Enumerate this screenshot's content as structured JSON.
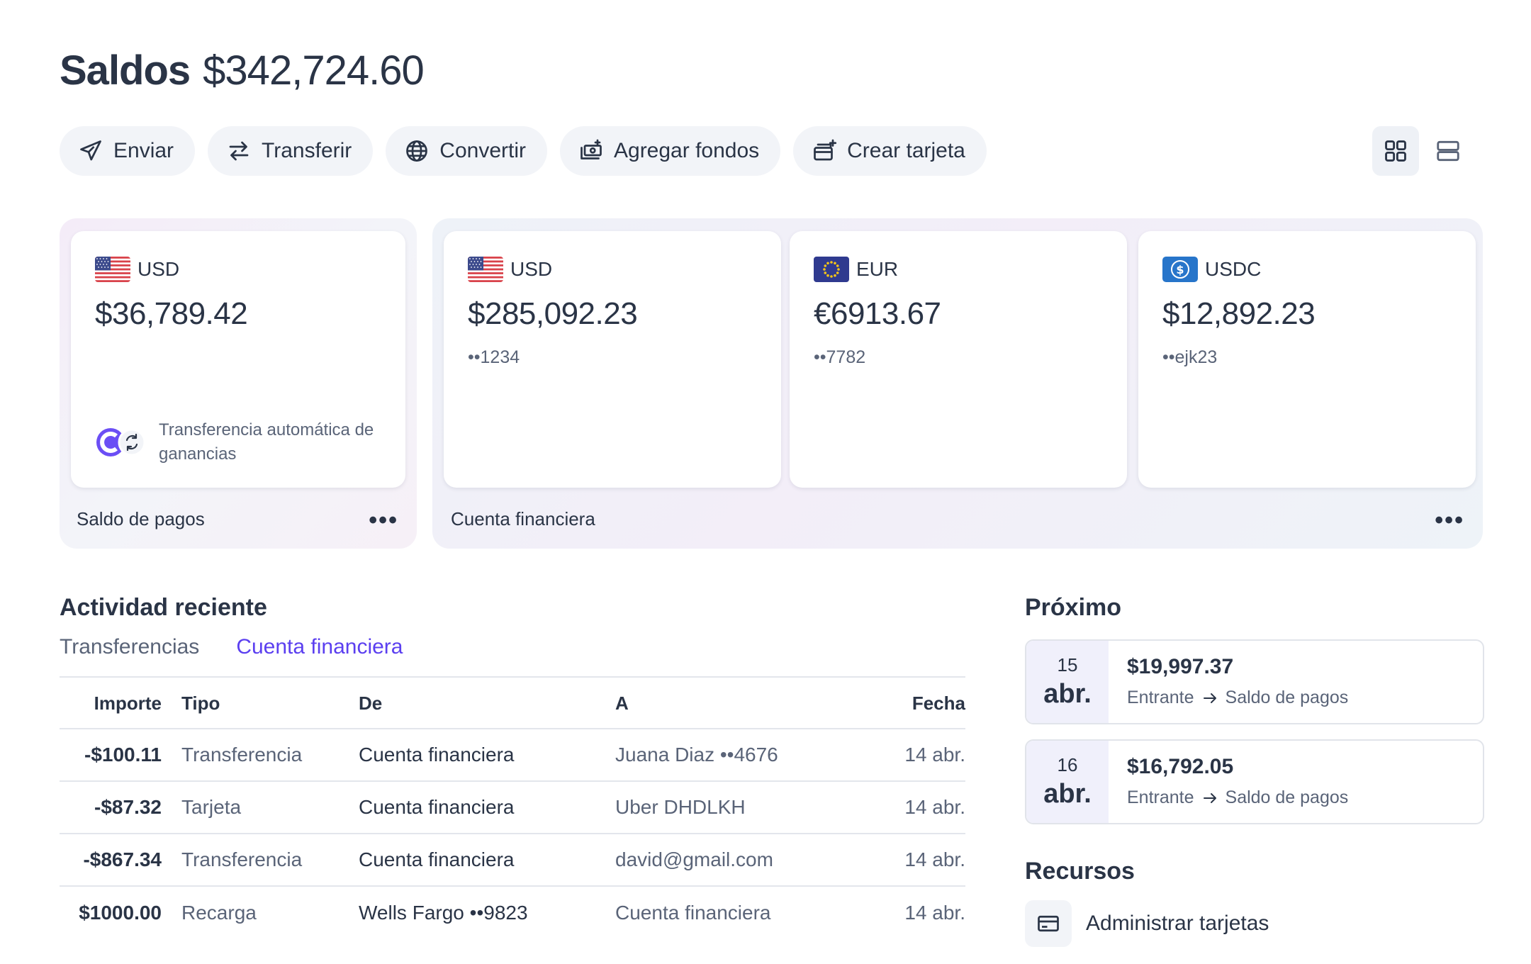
{
  "header": {
    "title": "Saldos",
    "total": "$342,724.60"
  },
  "toolbar": {
    "send": "Enviar",
    "transfer": "Transferir",
    "convert": "Convertir",
    "add_funds": "Agregar fondos",
    "create_card": "Crear tarjeta"
  },
  "payments_group": {
    "label": "Saldo de pagos",
    "card": {
      "currency": "USD",
      "amount": "$36,789.42",
      "auto_transfer": "Transferencia automática de ganancias"
    }
  },
  "financial_group": {
    "label": "Cuenta financiera",
    "cards": [
      {
        "currency": "USD",
        "amount": "$285,092.23",
        "account": "••1234"
      },
      {
        "currency": "EUR",
        "amount": "€6913.67",
        "account": "••7782"
      },
      {
        "currency": "USDC",
        "amount": "$12,892.23",
        "account": "••ejk23"
      }
    ]
  },
  "activity": {
    "title": "Actividad reciente",
    "tabs": [
      "Transferencias",
      "Cuenta financiera"
    ],
    "columns": {
      "amount": "Importe",
      "type": "Tipo",
      "from": "De",
      "to": "A",
      "date": "Fecha"
    },
    "rows": [
      {
        "amount": "-$100.11",
        "type": "Transferencia",
        "from": "Cuenta financiera",
        "to": "Juana Diaz ••4676",
        "date": "14 abr."
      },
      {
        "amount": "-$87.32",
        "type": "Tarjeta",
        "from": "Cuenta financiera",
        "to": "Uber DHDLKH",
        "date": "14 abr."
      },
      {
        "amount": "-$867.34",
        "type": "Transferencia",
        "from": "Cuenta financiera",
        "to": "david@gmail.com",
        "date": "14 abr."
      },
      {
        "amount": "$1000.00",
        "type": "Recarga",
        "from": "Wells Fargo ••9823",
        "to": "Cuenta financiera",
        "date": "14 abr."
      }
    ]
  },
  "upcoming": {
    "title": "Próximo",
    "items": [
      {
        "day": "15",
        "month": "abr.",
        "amount": "$19,997.37",
        "direction": "Entrante",
        "destination": "Saldo de pagos"
      },
      {
        "day": "16",
        "month": "abr.",
        "amount": "$16,792.05",
        "direction": "Entrante",
        "destination": "Saldo de pagos"
      }
    ]
  },
  "resources": {
    "title": "Recursos",
    "manage_cards": "Administrar tarjetas"
  },
  "colors": {
    "accent": "#5b3ff0",
    "text": "#2a3446",
    "muted": "#5a6478"
  },
  "icons": [
    "send-icon",
    "transfer-icon",
    "globe-icon",
    "add-funds-icon",
    "create-card-icon",
    "grid-view-icon",
    "list-view-icon",
    "us-flag-icon",
    "eu-flag-icon",
    "usdc-icon",
    "more-icon",
    "arrow-right-icon",
    "card-icon"
  ]
}
